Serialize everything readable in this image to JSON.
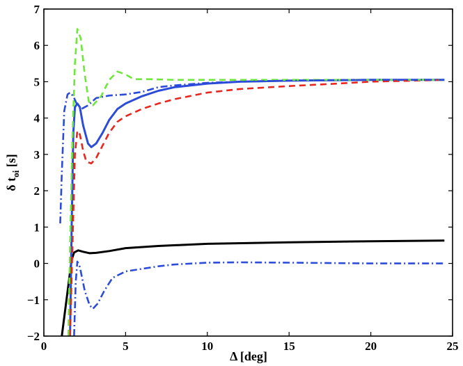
{
  "chart_data": {
    "type": "line",
    "title": "",
    "xlabel": "Δ [deg]",
    "ylabel_main": "δ t",
    "ylabel_sub": "oi",
    "ylabel_unit": " [s]",
    "xlim": [
      0,
      25
    ],
    "ylim": [
      -2,
      7
    ],
    "xticks": [
      0,
      5,
      10,
      15,
      20,
      25
    ],
    "yticks": [
      -2,
      -1,
      0,
      1,
      2,
      3,
      4,
      5,
      6,
      7
    ],
    "ytick_labels": [
      "−2",
      "−1",
      "0",
      "1",
      "2",
      "3",
      "4",
      "5",
      "6",
      "7"
    ],
    "grid": false,
    "series": [
      {
        "color": "#000000",
        "style": "solid",
        "points": [
          [
            1.1,
            -2.0
          ],
          [
            1.3,
            -1.3
          ],
          [
            1.5,
            -0.6
          ],
          [
            1.7,
            0.1
          ],
          [
            1.85,
            0.3
          ],
          [
            2.1,
            0.36
          ],
          [
            2.4,
            0.32
          ],
          [
            2.8,
            0.28
          ],
          [
            3.2,
            0.29
          ],
          [
            4.0,
            0.34
          ],
          [
            5.0,
            0.42
          ],
          [
            7.0,
            0.48
          ],
          [
            10.0,
            0.54
          ],
          [
            15.0,
            0.58
          ],
          [
            20.0,
            0.61
          ],
          [
            24.5,
            0.63
          ]
        ]
      },
      {
        "color": "#2b4bd8",
        "style": "solid",
        "points": [
          [
            1.6,
            -2.0
          ],
          [
            1.7,
            1.0
          ],
          [
            1.8,
            3.6
          ],
          [
            1.9,
            4.3
          ],
          [
            2.05,
            4.4
          ],
          [
            2.2,
            4.3
          ],
          [
            2.4,
            3.8
          ],
          [
            2.7,
            3.3
          ],
          [
            2.9,
            3.2
          ],
          [
            3.2,
            3.3
          ],
          [
            3.6,
            3.6
          ],
          [
            4.0,
            3.95
          ],
          [
            4.5,
            4.25
          ],
          [
            5.0,
            4.4
          ],
          [
            6.0,
            4.6
          ],
          [
            7.0,
            4.75
          ],
          [
            8.0,
            4.85
          ],
          [
            10.0,
            4.95
          ],
          [
            12.0,
            5.0
          ],
          [
            15.0,
            5.03
          ],
          [
            20.0,
            5.05
          ],
          [
            24.5,
            5.05
          ]
        ]
      },
      {
        "color": "#e8261e",
        "style": "dashed",
        "points": [
          [
            1.6,
            -2.0
          ],
          [
            1.75,
            0.5
          ],
          [
            1.9,
            3.0
          ],
          [
            2.05,
            3.65
          ],
          [
            2.2,
            3.55
          ],
          [
            2.4,
            3.1
          ],
          [
            2.6,
            2.8
          ],
          [
            2.9,
            2.75
          ],
          [
            3.2,
            2.9
          ],
          [
            3.6,
            3.25
          ],
          [
            4.0,
            3.6
          ],
          [
            4.5,
            3.9
          ],
          [
            5.0,
            4.05
          ],
          [
            6.0,
            4.25
          ],
          [
            7.0,
            4.4
          ],
          [
            8.0,
            4.52
          ],
          [
            10.0,
            4.7
          ],
          [
            12.0,
            4.8
          ],
          [
            15.0,
            4.88
          ],
          [
            18.0,
            4.95
          ],
          [
            20.0,
            5.0
          ],
          [
            24.5,
            5.05
          ]
        ]
      },
      {
        "color": "#6de83a",
        "style": "dashed",
        "points": [
          [
            1.5,
            -2.0
          ],
          [
            1.6,
            0.5
          ],
          [
            1.75,
            3.5
          ],
          [
            1.9,
            5.5
          ],
          [
            2.05,
            6.45
          ],
          [
            2.25,
            6.2
          ],
          [
            2.5,
            5.2
          ],
          [
            2.75,
            4.45
          ],
          [
            3.0,
            4.35
          ],
          [
            3.5,
            4.6
          ],
          [
            4.0,
            5.05
          ],
          [
            4.5,
            5.28
          ],
          [
            5.0,
            5.2
          ],
          [
            5.5,
            5.07
          ],
          [
            6.5,
            5.07
          ],
          [
            8.0,
            5.05
          ],
          [
            10.0,
            5.05
          ],
          [
            15.0,
            5.05
          ],
          [
            24.5,
            5.05
          ]
        ]
      },
      {
        "color": "#2b4bd8",
        "style": "dashdot",
        "points": [
          [
            1.0,
            1.1
          ],
          [
            1.1,
            2.5
          ],
          [
            1.25,
            4.2
          ],
          [
            1.45,
            4.65
          ],
          [
            1.6,
            4.7
          ],
          [
            1.8,
            4.6
          ],
          [
            2.0,
            4.4
          ],
          [
            2.3,
            4.25
          ],
          [
            2.7,
            4.35
          ],
          [
            3.2,
            4.55
          ],
          [
            4.0,
            4.62
          ],
          [
            5.0,
            4.65
          ],
          [
            6.0,
            4.72
          ],
          [
            7.0,
            4.85
          ],
          [
            8.0,
            4.9
          ],
          [
            10.0,
            4.97
          ],
          [
            12.0,
            5.0
          ],
          [
            15.0,
            5.03
          ],
          [
            20.0,
            5.05
          ],
          [
            24.5,
            5.05
          ]
        ]
      },
      {
        "color": "#2b4bd8",
        "style": "dashdot",
        "points": [
          [
            1.85,
            -2.0
          ],
          [
            1.95,
            -0.5
          ],
          [
            2.05,
            0.05
          ],
          [
            2.2,
            -0.1
          ],
          [
            2.5,
            -0.75
          ],
          [
            2.8,
            -1.15
          ],
          [
            3.0,
            -1.25
          ],
          [
            3.3,
            -1.1
          ],
          [
            3.7,
            -0.75
          ],
          [
            4.2,
            -0.4
          ],
          [
            5.0,
            -0.22
          ],
          [
            6.0,
            -0.15
          ],
          [
            7.0,
            -0.08
          ],
          [
            8.0,
            -0.03
          ],
          [
            10.0,
            0.02
          ],
          [
            12.0,
            0.03
          ],
          [
            15.0,
            0.02
          ],
          [
            20.0,
            0.0
          ],
          [
            24.5,
            0.0
          ]
        ]
      }
    ]
  }
}
